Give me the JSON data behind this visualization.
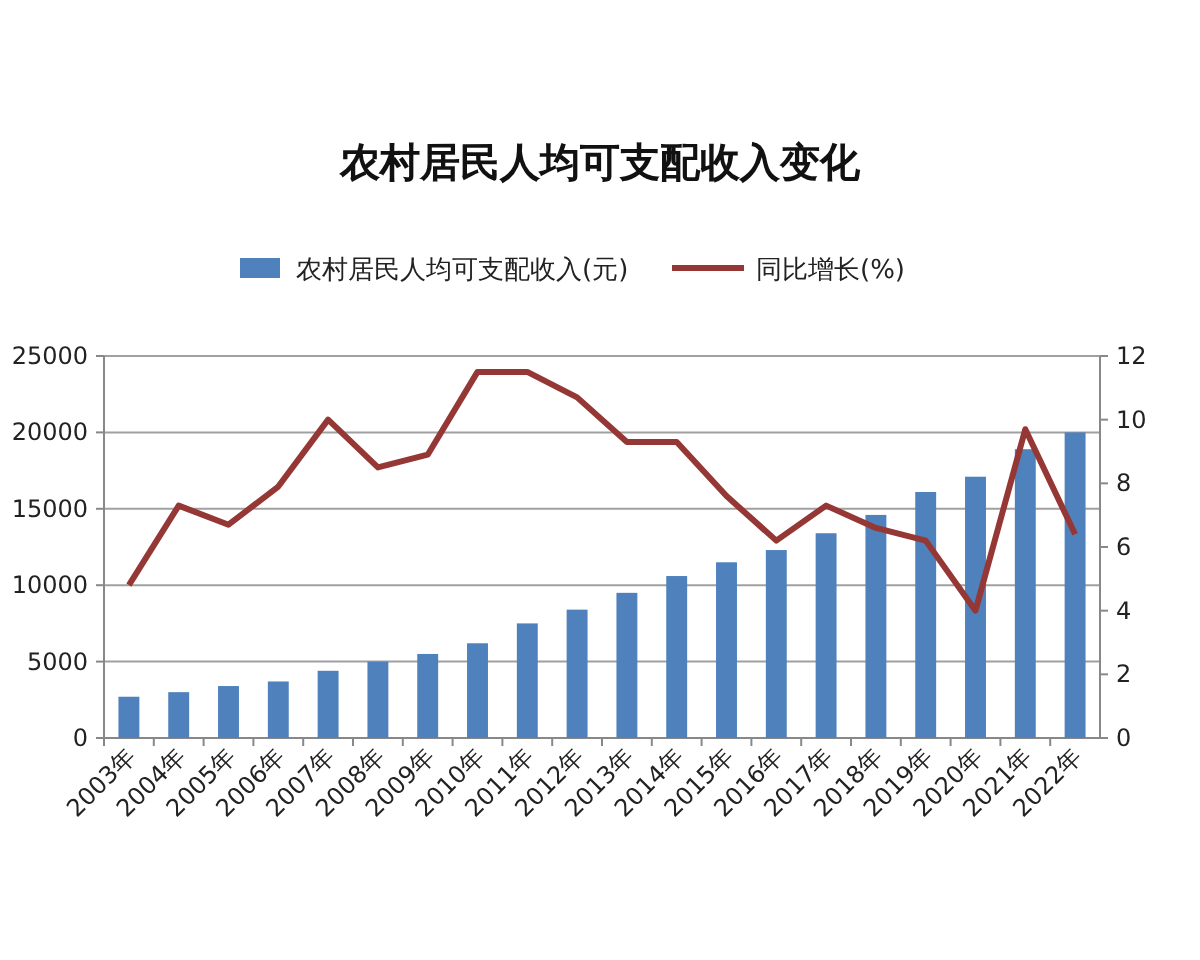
{
  "chart_data": {
    "type": "bar",
    "title": "农村居民人均可支配收入变化",
    "categories": [
      "2003年",
      "2004年",
      "2005年",
      "2006年",
      "2007年",
      "2008年",
      "2009年",
      "2010年",
      "2011年",
      "2012年",
      "2013年",
      "2014年",
      "2015年",
      "2016年",
      "2017年",
      "2018年",
      "2019年",
      "2020年",
      "2021年",
      "2022年"
    ],
    "series": [
      {
        "name": "农村居民人均可支配收入(元)",
        "color": "#4f81bd",
        "values": [
          2700,
          3000,
          3400,
          3700,
          4400,
          5000,
          5500,
          6200,
          7500,
          8400,
          9500,
          10600,
          11500,
          12300,
          13400,
          14600,
          16100,
          17100,
          18900,
          20000
        ]
      },
      {
        "name": "同比增长(%)",
        "type": "line",
        "axis": "y2",
        "color": "#953735",
        "values": [
          4.8,
          7.3,
          6.7,
          7.9,
          10.0,
          8.5,
          8.9,
          11.5,
          11.5,
          10.7,
          9.3,
          9.3,
          7.6,
          6.2,
          7.3,
          6.6,
          6.2,
          4.0,
          9.7,
          6.4
        ]
      }
    ],
    "ylim": [
      0,
      25000
    ],
    "yticks": [
      0,
      5000,
      10000,
      15000,
      20000,
      25000
    ],
    "y2lim": [
      0,
      12
    ],
    "y2ticks": [
      0,
      2,
      4,
      6,
      8,
      10,
      12
    ],
    "grid": "y",
    "legend": "top",
    "marker": "none",
    "line_style": "solid"
  }
}
